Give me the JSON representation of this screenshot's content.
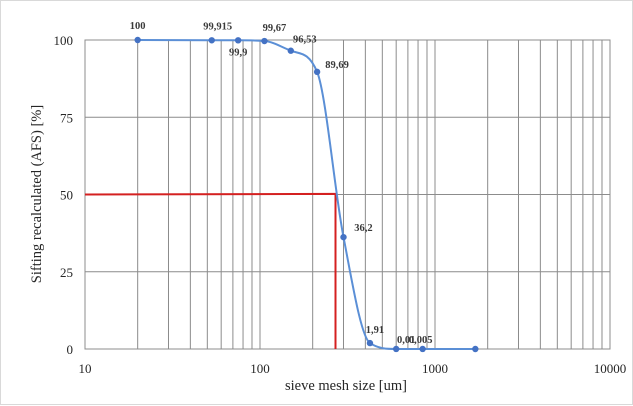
{
  "chart_data": {
    "type": "scatter",
    "title": "",
    "xlabel": "sieve mesh size [um]",
    "ylabel": "Sifting recalculated (AFS) [%]",
    "xscale": "log",
    "xlim": [
      10,
      10000
    ],
    "ylim": [
      0,
      100
    ],
    "xticks": [
      10,
      100,
      1000,
      10000
    ],
    "xtick_labels": [
      "10",
      "100",
      "1000",
      "10000"
    ],
    "yticks": [
      0,
      25,
      50,
      75,
      100
    ],
    "ytick_labels": [
      "0",
      "25",
      "50",
      "75",
      "100"
    ],
    "grid": true,
    "legend": "none",
    "series": [
      {
        "color": "#4472c4",
        "smooth": true,
        "points": [
          {
            "x": 20,
            "y": 100,
            "label": "100"
          },
          {
            "x": 53,
            "y": 99.915,
            "label": "99,915"
          },
          {
            "x": 75,
            "y": 99.9,
            "label": "99,9"
          },
          {
            "x": 106,
            "y": 99.67,
            "label": "99,67"
          },
          {
            "x": 150,
            "y": 96.53,
            "label": "96,53"
          },
          {
            "x": 212,
            "y": 89.69,
            "label": "89,69"
          },
          {
            "x": 300,
            "y": 36.2,
            "label": "36,2"
          },
          {
            "x": 425,
            "y": 1.91,
            "label": "1,91"
          },
          {
            "x": 600,
            "y": 0.01,
            "label": "0,01"
          },
          {
            "x": 850,
            "y": 0.005,
            "label": "0,005"
          },
          {
            "x": 1700,
            "y": 0,
            "label": ""
          }
        ]
      }
    ],
    "reference_lines": [
      {
        "color": "#d42020",
        "points": [
          [
            10,
            50
          ],
          [
            270,
            50.2
          ],
          [
            270,
            0
          ]
        ]
      }
    ]
  }
}
